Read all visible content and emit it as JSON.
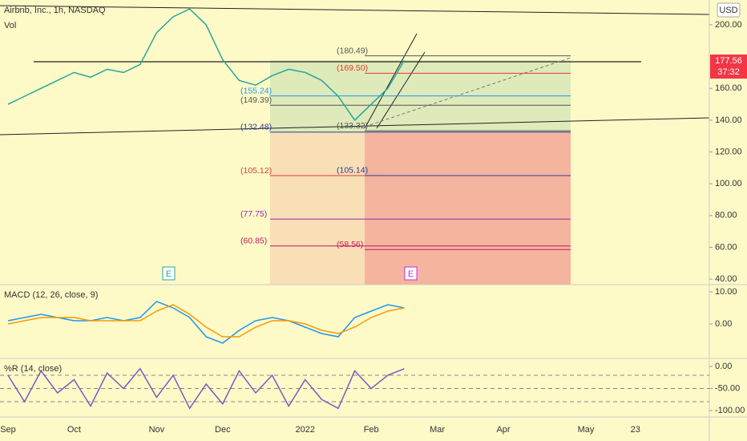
{
  "header": {
    "title": "Airbnb, Inc., 1h, NASDAQ",
    "volume_label": "Vol",
    "currency": "USD",
    "last_price": 177.56,
    "countdown": "37:32",
    "earnings_marker": "E"
  },
  "chart_data": [
    {
      "type": "line",
      "title": "Airbnb, Inc., 1h, NASDAQ",
      "categories": [
        "Sep",
        null,
        null,
        null,
        "Oct",
        null,
        null,
        null,
        null,
        "Nov",
        null,
        null,
        null,
        "Dec",
        null,
        null,
        null,
        null,
        "2022",
        null,
        null,
        null,
        "Feb",
        null,
        null,
        null,
        "Mar",
        null,
        null,
        null,
        "Apr",
        null,
        null,
        null,
        null,
        "May",
        null,
        null,
        "23",
        null
      ],
      "series": [
        {
          "color": "#26a69a",
          "values": [
            150,
            155,
            160,
            165,
            170,
            167,
            172,
            170,
            175,
            195,
            205,
            210,
            200,
            178,
            165,
            162,
            168,
            172,
            170,
            165,
            155,
            140,
            150,
            160,
            177.56,
            null,
            null,
            null,
            null,
            null,
            null,
            null,
            null,
            null,
            null,
            null,
            null,
            null,
            null,
            null
          ]
        }
      ],
      "ylim": [
        36.5,
        215.6
      ],
      "yticks": [
        {
          "value": 40,
          "label": "40.00"
        },
        {
          "value": 60,
          "label": "60.00"
        },
        {
          "value": 80,
          "label": "80.00"
        },
        {
          "value": 100,
          "label": "100.00"
        },
        {
          "value": 120,
          "label": "120.00"
        },
        {
          "value": 140,
          "label": "140.00"
        },
        {
          "value": 160,
          "label": "160.00"
        },
        {
          "value": 200,
          "label": "200.00"
        }
      ],
      "fib_left": [
        {
          "value": 149.39,
          "label": "(149.39)",
          "color": "#555555"
        },
        {
          "value": 155.24,
          "label": "(155.24)",
          "color": "#2196f3"
        },
        {
          "value": 132.48,
          "label": "(132.48)",
          "color": "#2a3a9a"
        },
        {
          "value": 105.12,
          "label": "(105.12)",
          "color": "#e53935"
        },
        {
          "value": 77.75,
          "label": "(77.75)",
          "color": "#9c27b0"
        },
        {
          "value": 60.85,
          "label": "(60.85)",
          "color": "#c2185b"
        }
      ],
      "fib_right": [
        {
          "value": 180.49,
          "label": "(180.49)",
          "color": "#555555"
        },
        {
          "value": 169.5,
          "label": "(169.50)",
          "color": "#e53935"
        },
        {
          "value": 133.32,
          "label": "(133.32)",
          "color": "#555555"
        },
        {
          "value": 105.14,
          "label": "(105.14)",
          "color": "#2a3a9a"
        },
        {
          "value": 58.56,
          "label": "(58.56)",
          "color": "#c2185b"
        }
      ]
    },
    {
      "type": "line",
      "title": "MACD (12, 26, close, 9)",
      "series": [
        {
          "color": "#2196f3",
          "values": [
            1,
            2,
            3,
            2,
            1,
            1,
            2,
            1,
            2,
            7,
            5,
            2,
            -4,
            -6,
            -2,
            1,
            2,
            1,
            -1,
            -3,
            -4,
            2,
            4,
            6,
            5
          ]
        },
        {
          "color": "#ff9800",
          "values": [
            0,
            1,
            2,
            2,
            2,
            1,
            1,
            1,
            1,
            4,
            6,
            3,
            -1,
            -4,
            -4,
            -1,
            1,
            1,
            0,
            -2,
            -3,
            -1,
            2,
            4,
            5
          ]
        }
      ],
      "ylim": [
        -10.75,
        12.25
      ],
      "yticks": [
        {
          "value": 0,
          "label": "0.00"
        },
        {
          "value": 10,
          "label": "10.00"
        }
      ]
    },
    {
      "type": "line",
      "title": "%R (14, close)",
      "series": [
        {
          "color": "#7e57c2",
          "values": [
            -20,
            -80,
            -10,
            -60,
            -30,
            -90,
            -15,
            -50,
            -5,
            -70,
            -20,
            -95,
            -40,
            -85,
            -10,
            -60,
            -20,
            -90,
            -30,
            -75,
            -95,
            -10,
            -50,
            -20,
            -5
          ]
        }
      ],
      "ylim": [
        -114.5,
        18.2
      ],
      "yticks": [
        {
          "value": 0,
          "label": "0.00"
        },
        {
          "value": -50,
          "label": "-50.00"
        },
        {
          "value": -100,
          "label": "-100.00"
        }
      ],
      "band_levels": [
        -20,
        -50,
        -80
      ]
    }
  ]
}
